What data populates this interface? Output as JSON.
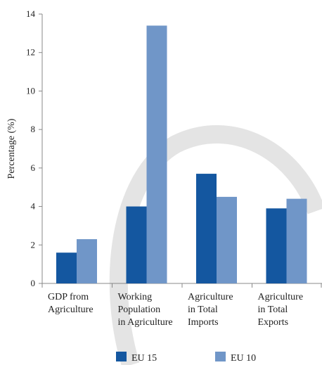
{
  "chart_data": {
    "type": "bar",
    "ylabel": "Percentage (%)",
    "ylim": [
      0,
      14
    ],
    "yticks": [
      0,
      2,
      4,
      6,
      8,
      10,
      12,
      14
    ],
    "grid": false,
    "legend_position": "bottom",
    "categories": [
      [
        "GDP from",
        "Agriculture"
      ],
      [
        "Working",
        "Population",
        "in Agriculture"
      ],
      [
        "Agriculture",
        "in Total",
        "Imports"
      ],
      [
        "Agriculture",
        "in Total",
        "Exports"
      ]
    ],
    "series": [
      {
        "name": "EU 15",
        "color": "#1457a0",
        "values": [
          1.6,
          4.0,
          5.7,
          3.9
        ]
      },
      {
        "name": "EU 10",
        "color": "#7096c8",
        "values": [
          2.3,
          13.4,
          4.5,
          4.4
        ]
      }
    ]
  }
}
